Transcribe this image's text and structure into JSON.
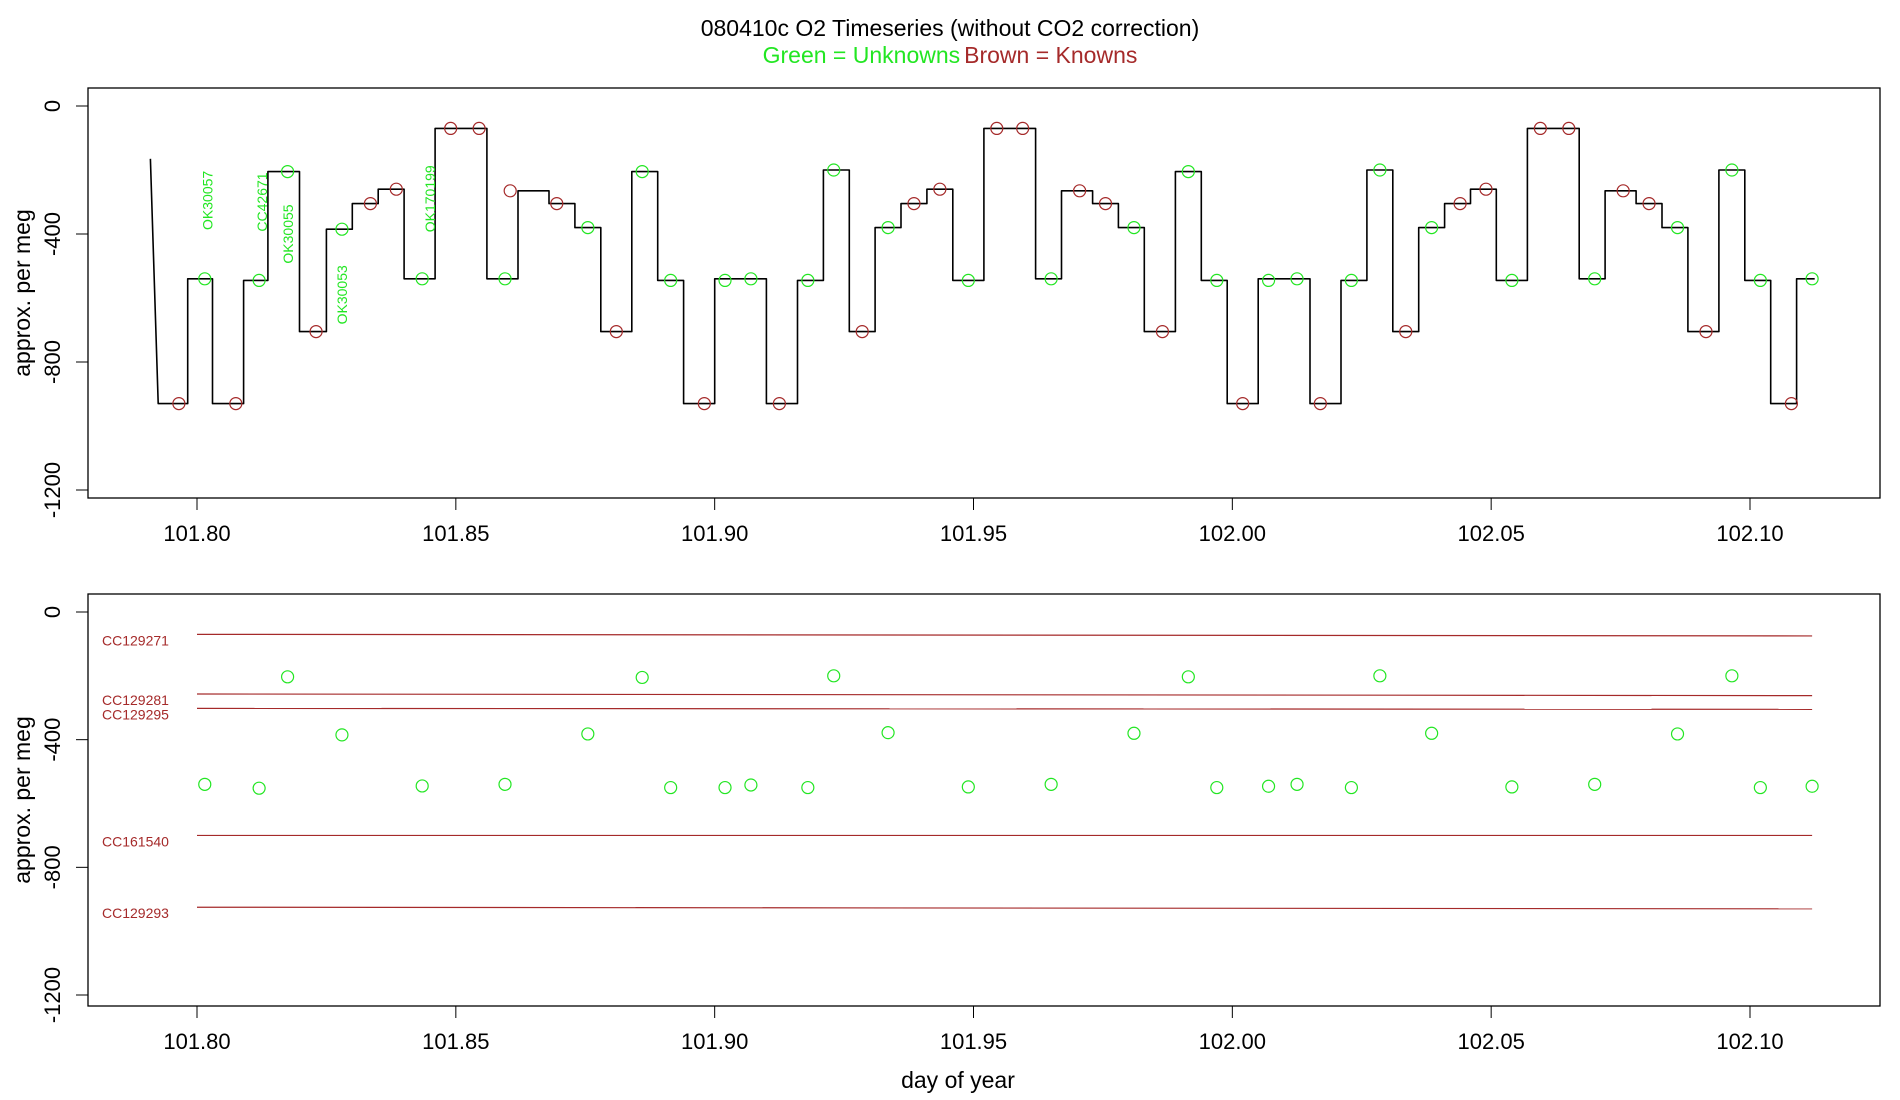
{
  "colors": {
    "unknown": "#22e622",
    "known": "#a52a2a",
    "trace": "#000000",
    "axis": "#000000"
  },
  "figure": {
    "title": "080410c   O2 Timeseries (without CO2 correction)",
    "subtitle_unknowns": "Green = Unknowns",
    "subtitle_knowns": "Brown = Knowns"
  },
  "chart_data": [
    {
      "type": "line",
      "title": "080410c   O2 Timeseries (without CO2 correction)",
      "ylabel": "approx. per meg",
      "xlabel": "",
      "xlim": [
        101.78,
        102.12
      ],
      "ylim": [
        -1250,
        50
      ],
      "grid": false,
      "xticks": [
        101.8,
        101.85,
        101.9,
        101.95,
        102.0,
        102.05,
        102.1
      ],
      "xtick_labels": [
        "101.80",
        "101.85",
        "101.90",
        "101.95",
        "102.00",
        "102.05",
        "102.10"
      ],
      "yticks": [
        0,
        -400,
        -800,
        -1200
      ],
      "ytick_labels": [
        "0",
        "-400",
        "-800",
        "-1200"
      ],
      "trace_start": {
        "x": 101.791,
        "y": -165
      },
      "segments": [
        {
          "x0": 101.7925,
          "x1": 101.7982,
          "y": -930
        },
        {
          "x0": 101.7982,
          "x1": 101.803,
          "y": -540
        },
        {
          "x0": 101.803,
          "x1": 101.809,
          "y": -930
        },
        {
          "x0": 101.809,
          "x1": 101.8137,
          "y": -545
        },
        {
          "x0": 101.8137,
          "x1": 101.8198,
          "y": -205
        },
        {
          "x0": 101.8198,
          "x1": 101.825,
          "y": -705
        },
        {
          "x0": 101.825,
          "x1": 101.83,
          "y": -385
        },
        {
          "x0": 101.83,
          "x1": 101.835,
          "y": -305
        },
        {
          "x0": 101.835,
          "x1": 101.84,
          "y": -260
        },
        {
          "x0": 101.84,
          "x1": 101.846,
          "y": -540
        },
        {
          "x0": 101.846,
          "x1": 101.856,
          "y": -70
        },
        {
          "x0": 101.856,
          "x1": 101.862,
          "y": -540
        },
        {
          "x0": 101.862,
          "x1": 101.868,
          "y": -265
        },
        {
          "x0": 101.868,
          "x1": 101.873,
          "y": -305
        },
        {
          "x0": 101.873,
          "x1": 101.878,
          "y": -380
        },
        {
          "x0": 101.878,
          "x1": 101.884,
          "y": -705
        },
        {
          "x0": 101.884,
          "x1": 101.889,
          "y": -205
        },
        {
          "x0": 101.889,
          "x1": 101.894,
          "y": -545
        },
        {
          "x0": 101.894,
          "x1": 101.9,
          "y": -930
        },
        {
          "x0": 101.9,
          "x1": 101.91,
          "y": -540
        },
        {
          "x0": 101.91,
          "x1": 101.916,
          "y": -930
        },
        {
          "x0": 101.916,
          "x1": 101.921,
          "y": -545
        },
        {
          "x0": 101.921,
          "x1": 101.926,
          "y": -200
        },
        {
          "x0": 101.926,
          "x1": 101.931,
          "y": -705
        },
        {
          "x0": 101.931,
          "x1": 101.936,
          "y": -380
        },
        {
          "x0": 101.936,
          "x1": 101.941,
          "y": -305
        },
        {
          "x0": 101.941,
          "x1": 101.946,
          "y": -260
        },
        {
          "x0": 101.946,
          "x1": 101.952,
          "y": -545
        },
        {
          "x0": 101.952,
          "x1": 101.962,
          "y": -70
        },
        {
          "x0": 101.962,
          "x1": 101.967,
          "y": -540
        },
        {
          "x0": 101.967,
          "x1": 101.973,
          "y": -265
        },
        {
          "x0": 101.973,
          "x1": 101.978,
          "y": -305
        },
        {
          "x0": 101.978,
          "x1": 101.983,
          "y": -380
        },
        {
          "x0": 101.983,
          "x1": 101.989,
          "y": -705
        },
        {
          "x0": 101.989,
          "x1": 101.994,
          "y": -205
        },
        {
          "x0": 101.994,
          "x1": 101.999,
          "y": -545
        },
        {
          "x0": 101.999,
          "x1": 102.005,
          "y": -930
        },
        {
          "x0": 102.005,
          "x1": 102.015,
          "y": -540
        },
        {
          "x0": 102.015,
          "x1": 102.021,
          "y": -930
        },
        {
          "x0": 102.021,
          "x1": 102.026,
          "y": -545
        },
        {
          "x0": 102.026,
          "x1": 102.031,
          "y": -200
        },
        {
          "x0": 102.031,
          "x1": 102.036,
          "y": -705
        },
        {
          "x0": 102.036,
          "x1": 102.041,
          "y": -380
        },
        {
          "x0": 102.041,
          "x1": 102.046,
          "y": -305
        },
        {
          "x0": 102.046,
          "x1": 102.051,
          "y": -260
        },
        {
          "x0": 102.051,
          "x1": 102.057,
          "y": -545
        },
        {
          "x0": 102.057,
          "x1": 102.067,
          "y": -70
        },
        {
          "x0": 102.067,
          "x1": 102.072,
          "y": -540
        },
        {
          "x0": 102.072,
          "x1": 102.078,
          "y": -265
        },
        {
          "x0": 102.078,
          "x1": 102.083,
          "y": -305
        },
        {
          "x0": 102.083,
          "x1": 102.088,
          "y": -380
        },
        {
          "x0": 102.088,
          "x1": 102.094,
          "y": -705
        },
        {
          "x0": 102.094,
          "x1": 102.099,
          "y": -200
        },
        {
          "x0": 102.099,
          "x1": 102.104,
          "y": -545
        },
        {
          "x0": 102.104,
          "x1": 102.109,
          "y": -930
        },
        {
          "x0": 102.109,
          "x1": 102.1125,
          "y": -540
        }
      ],
      "known_points": [
        {
          "x": 101.7965,
          "y": -930
        },
        {
          "x": 101.8075,
          "y": -930
        },
        {
          "x": 101.823,
          "y": -705
        },
        {
          "x": 101.8335,
          "y": -305
        },
        {
          "x": 101.8385,
          "y": -260
        },
        {
          "x": 101.849,
          "y": -70
        },
        {
          "x": 101.8545,
          "y": -70
        },
        {
          "x": 101.8605,
          "y": -265
        },
        {
          "x": 101.8695,
          "y": -305
        },
        {
          "x": 101.881,
          "y": -705
        },
        {
          "x": 101.898,
          "y": -930
        },
        {
          "x": 101.9125,
          "y": -930
        },
        {
          "x": 101.9285,
          "y": -705
        },
        {
          "x": 101.9385,
          "y": -305
        },
        {
          "x": 101.9435,
          "y": -260
        },
        {
          "x": 101.9545,
          "y": -70
        },
        {
          "x": 101.9595,
          "y": -70
        },
        {
          "x": 101.9705,
          "y": -265
        },
        {
          "x": 101.9755,
          "y": -305
        },
        {
          "x": 101.9865,
          "y": -705
        },
        {
          "x": 102.002,
          "y": -930
        },
        {
          "x": 102.017,
          "y": -930
        },
        {
          "x": 102.0335,
          "y": -705
        },
        {
          "x": 102.044,
          "y": -305
        },
        {
          "x": 102.049,
          "y": -260
        },
        {
          "x": 102.0595,
          "y": -70
        },
        {
          "x": 102.065,
          "y": -70
        },
        {
          "x": 102.0755,
          "y": -265
        },
        {
          "x": 102.0805,
          "y": -305
        },
        {
          "x": 102.0915,
          "y": -705
        },
        {
          "x": 102.108,
          "y": -930
        }
      ],
      "unknown_points": [
        {
          "x": 101.8015,
          "y": -540
        },
        {
          "x": 101.812,
          "y": -545
        },
        {
          "x": 101.8175,
          "y": -205
        },
        {
          "x": 101.828,
          "y": -385
        },
        {
          "x": 101.8435,
          "y": -540
        },
        {
          "x": 101.8595,
          "y": -540
        },
        {
          "x": 101.8755,
          "y": -380
        },
        {
          "x": 101.886,
          "y": -205
        },
        {
          "x": 101.8915,
          "y": -545
        },
        {
          "x": 101.902,
          "y": -545
        },
        {
          "x": 101.907,
          "y": -540
        },
        {
          "x": 101.918,
          "y": -545
        },
        {
          "x": 101.923,
          "y": -200
        },
        {
          "x": 101.9335,
          "y": -380
        },
        {
          "x": 101.949,
          "y": -545
        },
        {
          "x": 101.965,
          "y": -540
        },
        {
          "x": 101.981,
          "y": -380
        },
        {
          "x": 101.9915,
          "y": -205
        },
        {
          "x": 101.997,
          "y": -545
        },
        {
          "x": 102.007,
          "y": -545
        },
        {
          "x": 102.0125,
          "y": -540
        },
        {
          "x": 102.023,
          "y": -545
        },
        {
          "x": 102.0285,
          "y": -200
        },
        {
          "x": 102.0385,
          "y": -380
        },
        {
          "x": 102.054,
          "y": -545
        },
        {
          "x": 102.07,
          "y": -540
        },
        {
          "x": 102.086,
          "y": -380
        },
        {
          "x": 102.0965,
          "y": -200
        },
        {
          "x": 102.102,
          "y": -545
        },
        {
          "x": 102.112,
          "y": -540
        }
      ],
      "annotations": [
        {
          "text": "OK30057",
          "x": 101.803,
          "y": -295
        },
        {
          "text": "CC42671",
          "x": 101.8135,
          "y": -300
        },
        {
          "text": "OK30055",
          "x": 101.8185,
          "y": -400
        },
        {
          "text": "OK30053",
          "x": 101.829,
          "y": -590
        },
        {
          "text": "OK170199",
          "x": 101.846,
          "y": -290
        }
      ]
    },
    {
      "type": "scatter",
      "ylabel": "approx. per meg",
      "xlabel": "day of year",
      "xlim": [
        101.78,
        102.12
      ],
      "ylim": [
        -1250,
        50
      ],
      "grid": false,
      "xticks": [
        101.8,
        101.85,
        101.9,
        101.95,
        102.0,
        102.05,
        102.1
      ],
      "xtick_labels": [
        "101.80",
        "101.85",
        "101.90",
        "101.95",
        "102.00",
        "102.05",
        "102.10"
      ],
      "yticks": [
        0,
        -400,
        -800,
        -1200
      ],
      "ytick_labels": [
        "0",
        "-400",
        "-800",
        "-1200"
      ],
      "reference_lines": [
        {
          "name": "CC129271",
          "x0": 101.8,
          "x1": 102.112,
          "y0": -70,
          "y1": -75
        },
        {
          "name": "CC129281",
          "x0": 101.8,
          "x1": 102.112,
          "y0": -257,
          "y1": -262
        },
        {
          "name": "CC129295",
          "x0": 101.8,
          "x1": 102.112,
          "y0": -302,
          "y1": -305
        },
        {
          "name": "CC161540",
          "x0": 101.8,
          "x1": 102.112,
          "y0": -700,
          "y1": -700
        },
        {
          "name": "CC129293",
          "x0": 101.8,
          "x1": 102.112,
          "y0": -925,
          "y1": -930
        }
      ],
      "unknown_points": [
        {
          "x": 101.8015,
          "y": -540
        },
        {
          "x": 101.812,
          "y": -552
        },
        {
          "x": 101.8175,
          "y": -203
        },
        {
          "x": 101.828,
          "y": -385
        },
        {
          "x": 101.8435,
          "y": -545
        },
        {
          "x": 101.8595,
          "y": -540
        },
        {
          "x": 101.8755,
          "y": -382
        },
        {
          "x": 101.886,
          "y": -205
        },
        {
          "x": 101.8915,
          "y": -550
        },
        {
          "x": 101.902,
          "y": -550
        },
        {
          "x": 101.907,
          "y": -542
        },
        {
          "x": 101.918,
          "y": -550
        },
        {
          "x": 101.923,
          "y": -200
        },
        {
          "x": 101.9335,
          "y": -378
        },
        {
          "x": 101.949,
          "y": -548
        },
        {
          "x": 101.965,
          "y": -540
        },
        {
          "x": 101.981,
          "y": -380
        },
        {
          "x": 101.9915,
          "y": -203
        },
        {
          "x": 101.997,
          "y": -550
        },
        {
          "x": 102.007,
          "y": -546
        },
        {
          "x": 102.0125,
          "y": -540
        },
        {
          "x": 102.023,
          "y": -550
        },
        {
          "x": 102.0285,
          "y": -200
        },
        {
          "x": 102.0385,
          "y": -380
        },
        {
          "x": 102.054,
          "y": -548
        },
        {
          "x": 102.07,
          "y": -540
        },
        {
          "x": 102.086,
          "y": -382
        },
        {
          "x": 102.0965,
          "y": -200
        },
        {
          "x": 102.102,
          "y": -550
        },
        {
          "x": 102.112,
          "y": -546
        }
      ]
    }
  ]
}
